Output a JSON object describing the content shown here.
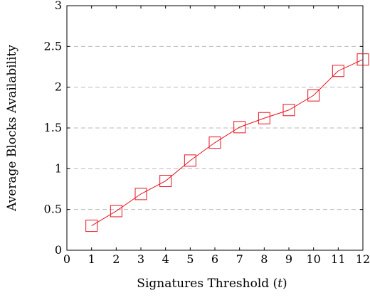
{
  "chart_data": {
    "type": "line",
    "title": "",
    "xlabel": "Signatures Threshold",
    "xlabel_var": "t",
    "ylabel": "Average Blocks Availability",
    "xlim": [
      0,
      12
    ],
    "ylim": [
      0,
      3
    ],
    "xticks": [
      "0",
      "1",
      "2",
      "3",
      "4",
      "5",
      "6",
      "7",
      "8",
      "9",
      "10",
      "11",
      "12"
    ],
    "yticks": [
      "0",
      "0.5",
      "1",
      "1.5",
      "2",
      "2.5",
      "3"
    ],
    "grid": "horizontal-dashed",
    "legend": "none",
    "series": [
      {
        "color": "#e8121e",
        "marker": "square-open",
        "x": [
          1,
          2,
          3,
          4,
          5,
          6,
          7,
          8,
          9,
          10,
          11,
          12
        ],
        "y": [
          0.3,
          0.48,
          0.69,
          0.85,
          1.1,
          1.32,
          1.51,
          1.62,
          1.72,
          1.9,
          2.2,
          2.34
        ]
      }
    ]
  }
}
